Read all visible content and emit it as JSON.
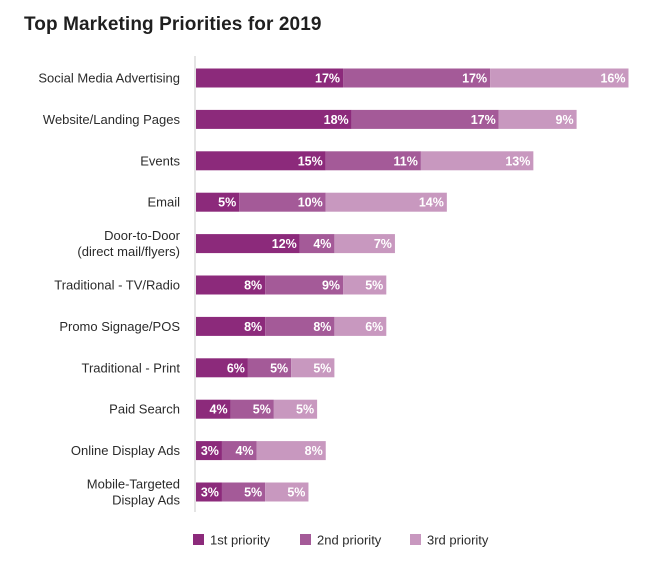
{
  "chart_data": {
    "type": "bar",
    "orientation": "horizontal",
    "stacked": true,
    "title": "Top Marketing Priorities for 2019",
    "categories": [
      [
        "Social Media Advertising"
      ],
      [
        "Website/Landing Pages"
      ],
      [
        "Events"
      ],
      [
        "Email"
      ],
      [
        "Door-to-Door",
        "(direct mail/flyers)"
      ],
      [
        "Traditional - TV/Radio"
      ],
      [
        "Promo Signage/POS"
      ],
      [
        "Traditional - Print"
      ],
      [
        "Paid Search"
      ],
      [
        "Online Display Ads"
      ],
      [
        "Mobile-Targeted",
        "Display Ads"
      ]
    ],
    "series": [
      {
        "name": "1st priority",
        "color": "#8c2a7b",
        "values": [
          17,
          18,
          15,
          5,
          12,
          8,
          8,
          6,
          4,
          3,
          3
        ]
      },
      {
        "name": "2nd priority",
        "color": "#a45a98",
        "values": [
          17,
          17,
          11,
          10,
          4,
          9,
          8,
          5,
          5,
          4,
          5
        ]
      },
      {
        "name": "3rd priority",
        "color": "#c898bf",
        "values": [
          16,
          9,
          13,
          14,
          7,
          5,
          6,
          5,
          5,
          8,
          5
        ]
      }
    ],
    "value_suffix": "%",
    "legend_position": "bottom-center",
    "grid": false
  }
}
